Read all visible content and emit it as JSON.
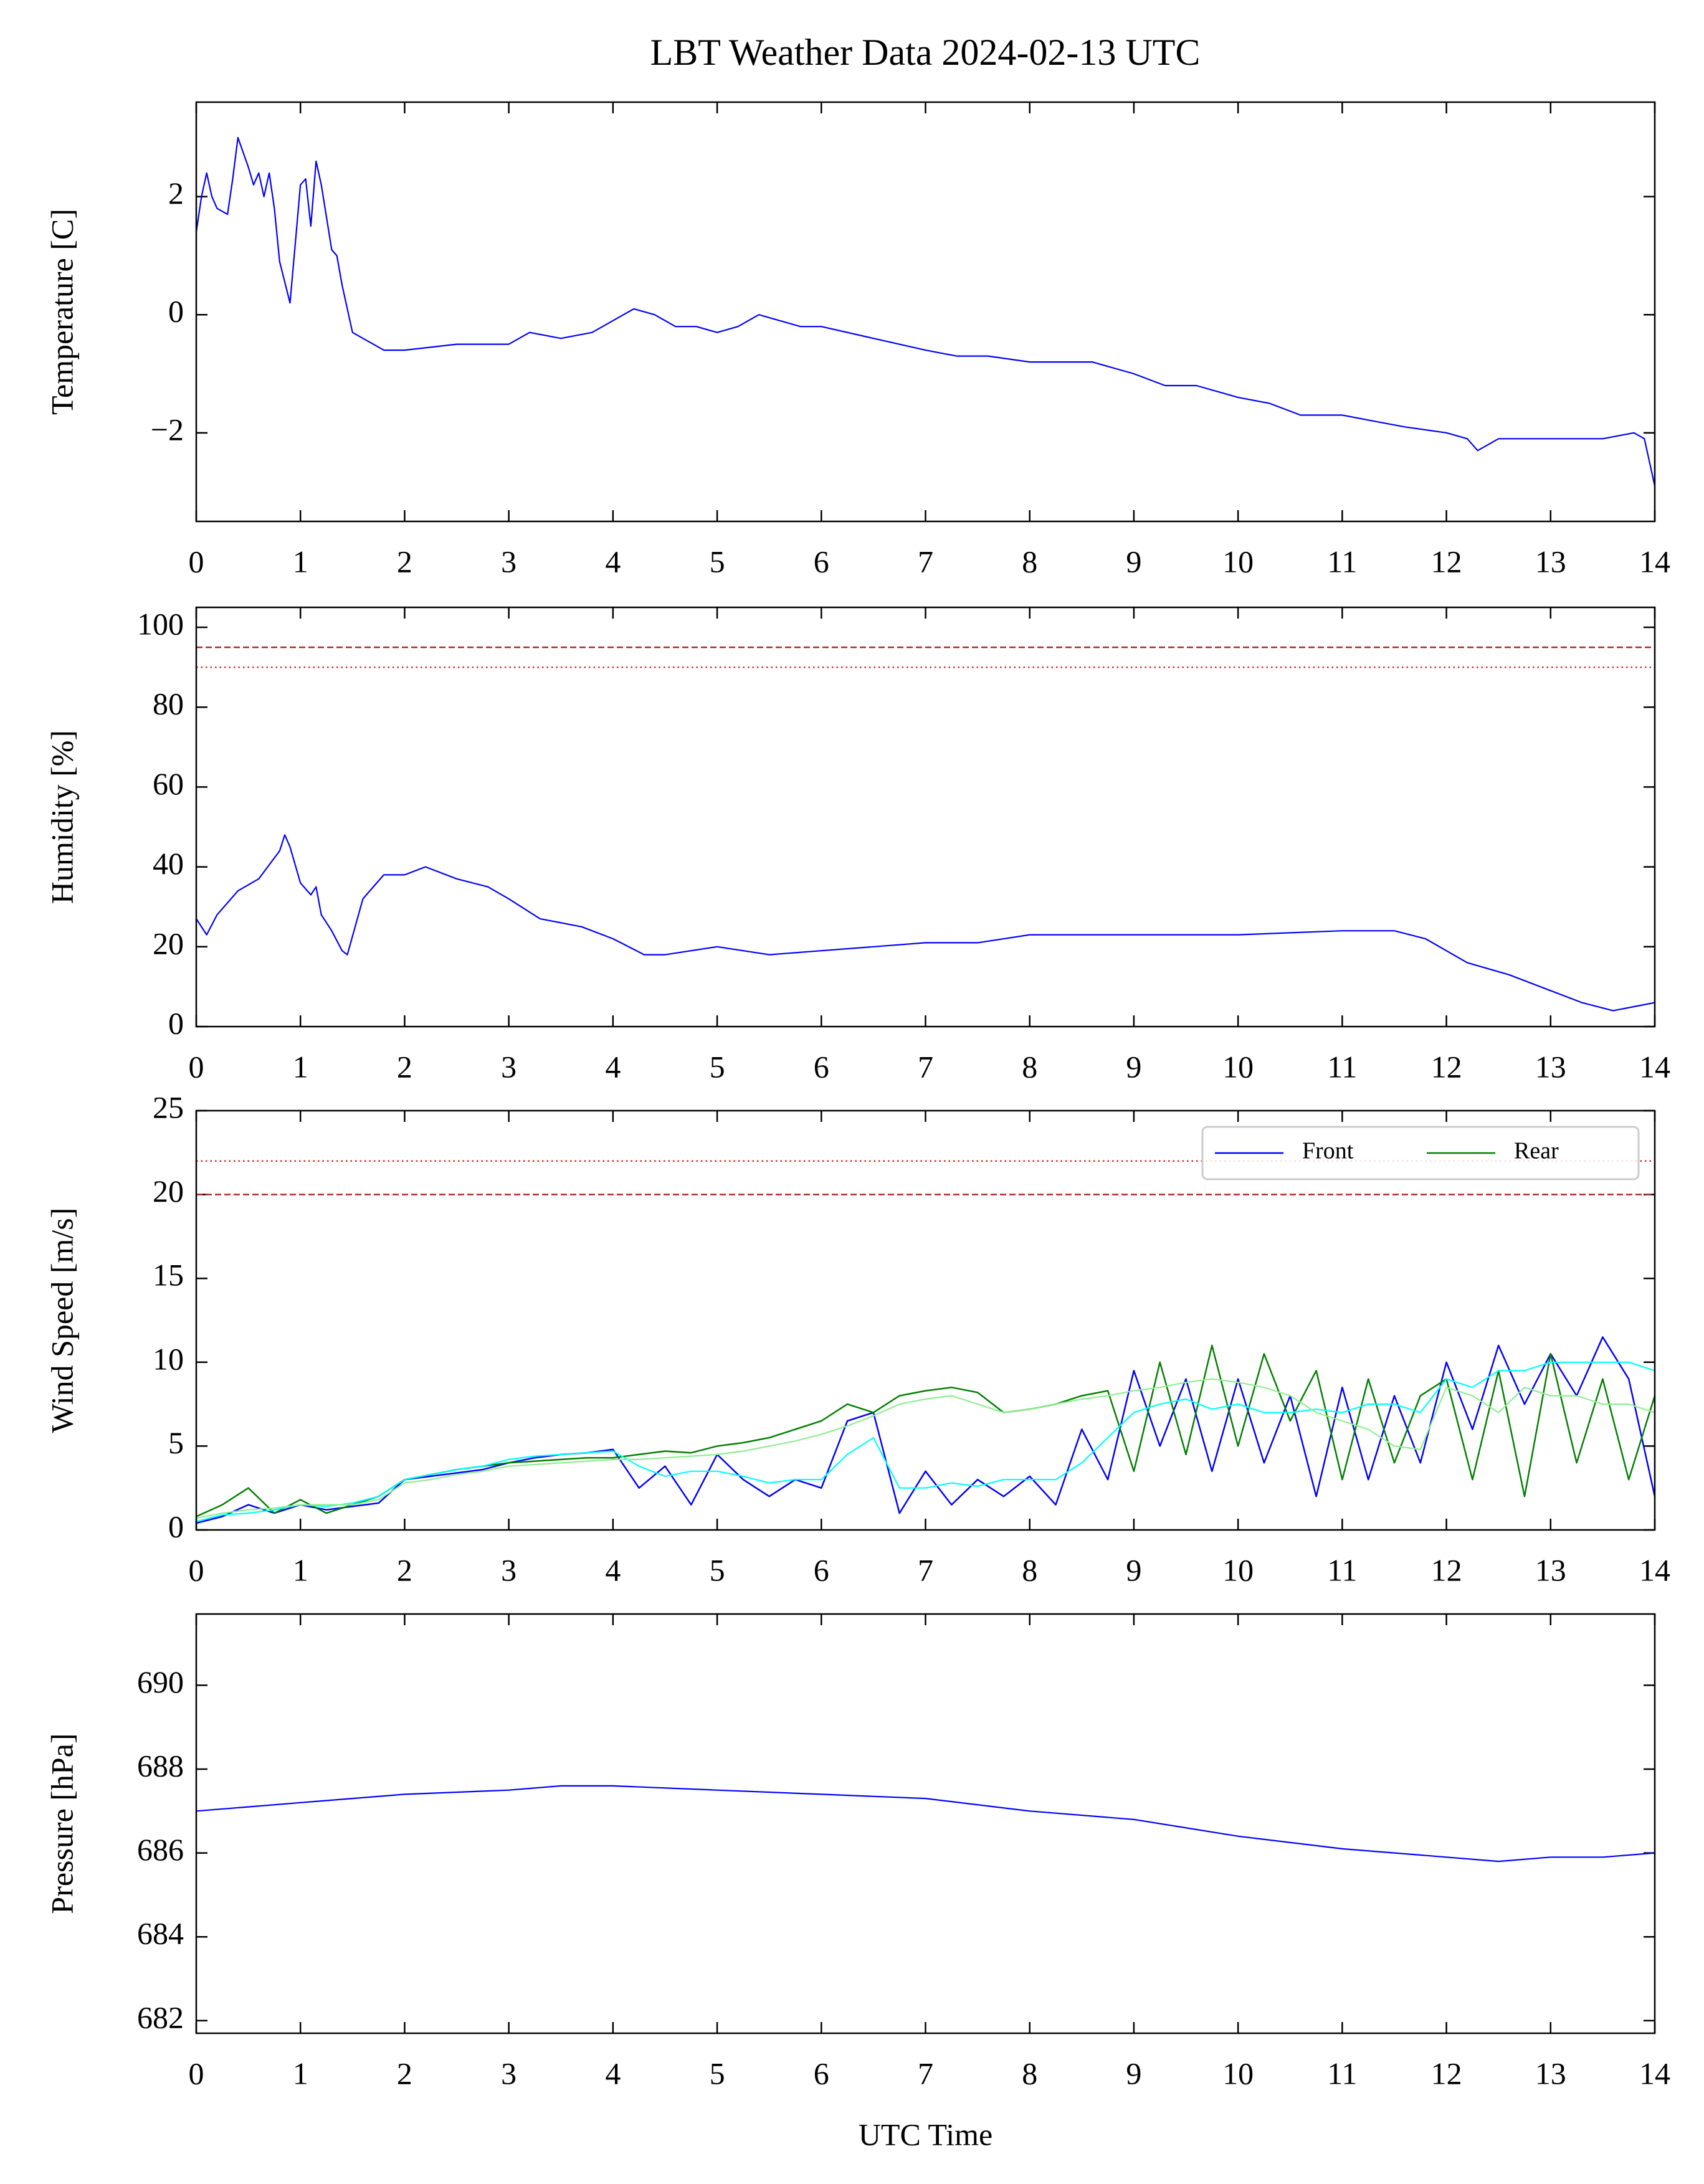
{
  "title": "LBT Weather Data 2024-02-13 UTC",
  "chart_data": [
    {
      "type": "line",
      "ylabel": "Temperature [C]",
      "xlim": [
        0,
        14
      ],
      "xticks": [
        0,
        1,
        2,
        3,
        4,
        5,
        6,
        7,
        8,
        9,
        10,
        11,
        12,
        13,
        14
      ],
      "ylim": [
        -3.5,
        3.6
      ],
      "yticks": [
        {
          "value": -2,
          "label": "−2"
        },
        0,
        2
      ],
      "x": [
        0,
        0.05,
        0.1,
        0.15,
        0.2,
        0.3,
        0.35,
        0.4,
        0.5,
        0.55,
        0.6,
        0.65,
        0.7,
        0.75,
        0.8,
        0.9,
        0.95,
        1.0,
        1.05,
        1.1,
        1.15,
        1.2,
        1.3,
        1.35,
        1.4,
        1.5,
        1.6,
        1.7,
        1.8,
        2.0,
        2.5,
        3.0,
        3.2,
        3.5,
        3.8,
        4.0,
        4.2,
        4.4,
        4.6,
        4.8,
        5.0,
        5.2,
        5.4,
        5.6,
        5.8,
        6.0,
        6.5,
        7.0,
        7.3,
        7.6,
        8.0,
        8.3,
        8.6,
        9.0,
        9.3,
        9.6,
        10.0,
        10.3,
        10.6,
        11.0,
        11.3,
        11.6,
        12.0,
        12.2,
        12.3,
        12.5,
        13.0,
        13.5,
        13.8,
        13.9,
        14.0
      ],
      "series": [
        {
          "color": "#0000ff",
          "values": [
            1.4,
            2.0,
            2.4,
            2.0,
            1.8,
            1.7,
            2.3,
            3.0,
            2.5,
            2.2,
            2.4,
            2.0,
            2.4,
            1.8,
            0.9,
            0.2,
            1.2,
            2.2,
            2.3,
            1.5,
            2.6,
            2.2,
            1.1,
            1.0,
            0.5,
            -0.3,
            -0.4,
            -0.5,
            -0.6,
            -0.6,
            -0.5,
            -0.5,
            -0.3,
            -0.4,
            -0.3,
            -0.1,
            0.1,
            0.0,
            -0.2,
            -0.2,
            -0.3,
            -0.2,
            0.0,
            -0.1,
            -0.2,
            -0.2,
            -0.4,
            -0.6,
            -0.7,
            -0.7,
            -0.8,
            -0.8,
            -0.8,
            -1.0,
            -1.2,
            -1.2,
            -1.4,
            -1.5,
            -1.7,
            -1.7,
            -1.8,
            -1.9,
            -2.0,
            -2.1,
            -2.3,
            -2.1,
            -2.1,
            -2.1,
            -2.0,
            -2.1,
            -2.9
          ]
        }
      ]
    },
    {
      "type": "line",
      "ylabel": "Humidity [%]",
      "xlim": [
        0,
        14
      ],
      "xticks": [
        0,
        1,
        2,
        3,
        4,
        5,
        6,
        7,
        8,
        9,
        10,
        11,
        12,
        13,
        14
      ],
      "ylim": [
        0,
        105
      ],
      "yticks": [
        0,
        20,
        40,
        60,
        80,
        100
      ],
      "hlines": [
        {
          "value": 95,
          "style": "dashed",
          "color": "#b22222"
        },
        {
          "value": 90,
          "style": "dotted",
          "color": "#dd2222"
        }
      ],
      "x": [
        0,
        0.1,
        0.2,
        0.4,
        0.6,
        0.8,
        0.85,
        0.9,
        1.0,
        1.1,
        1.15,
        1.2,
        1.3,
        1.4,
        1.45,
        1.6,
        1.8,
        2.0,
        2.2,
        2.5,
        2.8,
        3.0,
        3.3,
        3.7,
        4.0,
        4.3,
        4.5,
        5.0,
        5.5,
        6.0,
        6.5,
        7.0,
        7.5,
        8.0,
        9.0,
        10.0,
        11.0,
        11.5,
        11.8,
        12.2,
        12.6,
        13.0,
        13.3,
        13.6,
        13.8,
        14.0
      ],
      "series": [
        {
          "color": "#0000ff",
          "values": [
            27,
            23,
            28,
            34,
            37,
            44,
            48,
            45,
            36,
            33,
            35,
            28,
            24,
            19,
            18,
            32,
            38,
            38,
            40,
            37,
            35,
            32,
            27,
            25,
            22,
            18,
            18,
            20,
            18,
            19,
            20,
            21,
            21,
            23,
            23,
            23,
            24,
            24,
            22,
            16,
            13,
            9,
            6,
            4,
            5,
            6
          ]
        }
      ]
    },
    {
      "type": "line",
      "ylabel": "Wind Speed [m/s]",
      "legend": "upper right",
      "xlim": [
        0,
        14
      ],
      "xticks": [
        0,
        1,
        2,
        3,
        4,
        5,
        6,
        7,
        8,
        9,
        10,
        11,
        12,
        13,
        14
      ],
      "ylim": [
        0,
        25
      ],
      "yticks": [
        0,
        5,
        10,
        15,
        20,
        25
      ],
      "hlines": [
        {
          "value": 22,
          "style": "dotted",
          "color": "#dd2222"
        },
        {
          "value": 20,
          "style": "dashed",
          "color": "#b22222"
        }
      ],
      "x": [
        0,
        0.25,
        0.5,
        0.75,
        1,
        1.25,
        1.5,
        1.75,
        2,
        2.25,
        2.5,
        2.75,
        3,
        3.25,
        3.5,
        3.75,
        4,
        4.25,
        4.5,
        4.75,
        5,
        5.25,
        5.5,
        5.75,
        6,
        6.25,
        6.5,
        6.75,
        7,
        7.25,
        7.5,
        7.75,
        8,
        8.25,
        8.5,
        8.75,
        9,
        9.25,
        9.5,
        9.75,
        10,
        10.25,
        10.5,
        10.75,
        11,
        11.25,
        11.5,
        11.75,
        12,
        12.25,
        12.5,
        12.75,
        13,
        13.25,
        13.5,
        13.75,
        14
      ],
      "series": [
        {
          "name": "Front",
          "color": "#0000ff",
          "values": [
            0.4,
            0.8,
            1.5,
            1.0,
            1.5,
            1.2,
            1.4,
            1.6,
            3.0,
            3.2,
            3.4,
            3.6,
            4.0,
            4.3,
            4.5,
            4.6,
            4.8,
            2.5,
            3.8,
            1.5,
            4.5,
            3.0,
            2.0,
            3.0,
            2.5,
            6.5,
            7.0,
            1.0,
            3.5,
            1.5,
            3.0,
            2.0,
            3.2,
            1.5,
            6.0,
            3.0,
            9.5,
            5.0,
            9.0,
            3.5,
            9.0,
            4.0,
            8.0,
            2.0,
            8.5,
            3.0,
            8.0,
            4.0,
            10.0,
            6.0,
            11.0,
            7.5,
            10.5,
            8.0,
            11.5,
            9.0,
            2.0
          ]
        },
        {
          "name": "Rear",
          "color": "#008000",
          "values": [
            0.8,
            1.5,
            2.5,
            1.0,
            1.8,
            1.0,
            1.5,
            2.0,
            3.0,
            3.3,
            3.6,
            3.8,
            4.0,
            4.1,
            4.2,
            4.3,
            4.3,
            4.5,
            4.7,
            4.6,
            5.0,
            5.2,
            5.5,
            6.0,
            6.5,
            7.5,
            7.0,
            8.0,
            8.3,
            8.5,
            8.2,
            7.0,
            7.2,
            7.5,
            8.0,
            8.3,
            3.5,
            10.0,
            4.5,
            11.0,
            5.0,
            10.5,
            6.5,
            9.5,
            3.0,
            9.0,
            4.0,
            8.0,
            9.0,
            3.0,
            9.5,
            2.0,
            10.5,
            4.0,
            9.0,
            3.0,
            8.0
          ]
        },
        {
          "color": "#00ffff",
          "values": [
            0.5,
            0.9,
            1.0,
            1.2,
            1.5,
            1.4,
            1.6,
            2.0,
            3.0,
            3.3,
            3.6,
            3.8,
            4.2,
            4.4,
            4.5,
            4.6,
            4.7,
            3.8,
            3.2,
            3.5,
            3.5,
            3.2,
            2.8,
            3.0,
            3.0,
            4.5,
            5.5,
            2.5,
            2.5,
            2.8,
            2.6,
            3.0,
            3.0,
            3.0,
            4.0,
            5.5,
            7.0,
            7.5,
            7.8,
            7.2,
            7.5,
            7.0,
            7.0,
            7.2,
            7.0,
            7.5,
            7.5,
            7.0,
            9.0,
            8.5,
            9.5,
            9.5,
            10.0,
            10.0,
            10.0,
            10.0,
            9.5
          ]
        },
        {
          "color": "#90ee90",
          "values": [
            0.7,
            1.0,
            1.2,
            1.3,
            1.5,
            1.5,
            1.5,
            1.8,
            2.8,
            3.0,
            3.3,
            3.5,
            3.8,
            3.9,
            4.0,
            4.1,
            4.2,
            4.2,
            4.3,
            4.4,
            4.5,
            4.7,
            5.0,
            5.3,
            5.7,
            6.2,
            6.8,
            7.5,
            7.8,
            8.0,
            7.5,
            7.0,
            7.2,
            7.5,
            7.8,
            8.0,
            8.3,
            8.5,
            8.8,
            9.0,
            8.8,
            8.5,
            8.0,
            7.0,
            6.5,
            6.0,
            5.0,
            4.8,
            8.5,
            8.0,
            7.0,
            8.5,
            8.0,
            8.0,
            7.5,
            7.5,
            7.0
          ]
        }
      ]
    },
    {
      "type": "line",
      "ylabel": "Pressure [hPa]",
      "xlabel": "UTC Time",
      "xlim": [
        0,
        14
      ],
      "xticks": [
        0,
        1,
        2,
        3,
        4,
        5,
        6,
        7,
        8,
        9,
        10,
        11,
        12,
        13,
        14
      ],
      "ylim": [
        681.7,
        691.7
      ],
      "yticks": [
        682,
        684,
        686,
        688,
        690
      ],
      "x": [
        0,
        0.5,
        1,
        2,
        3,
        3.5,
        4,
        5,
        6,
        7,
        8,
        9,
        10,
        11,
        12,
        12.5,
        13,
        13.5,
        14
      ],
      "series": [
        {
          "color": "#0000ff",
          "values": [
            687.0,
            687.1,
            687.2,
            687.4,
            687.5,
            687.6,
            687.6,
            687.5,
            687.4,
            687.3,
            687.0,
            686.8,
            686.4,
            686.1,
            685.9,
            685.8,
            685.9,
            685.9,
            686.0
          ]
        }
      ]
    }
  ]
}
